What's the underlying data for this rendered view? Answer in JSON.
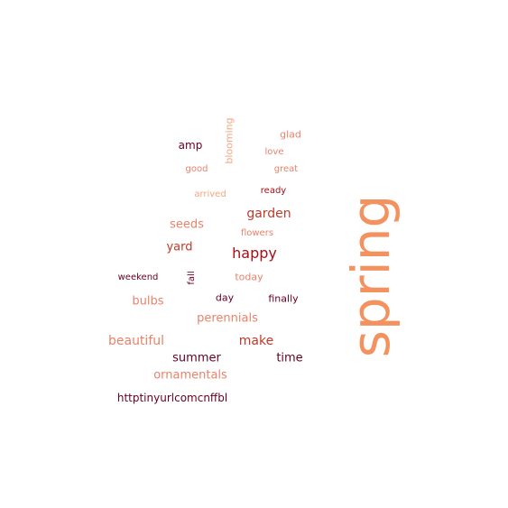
{
  "colors": {
    "light_orange": "#f4a582",
    "salmon": "#e8826a",
    "orange": "#f0905f",
    "red": "#d6604d",
    "dark_red": "#b2182b",
    "maroon": "#67001f",
    "brown": "#8b1a1a"
  },
  "words": [
    {
      "text": "spring",
      "color": "#f4925f"
    },
    {
      "text": "happy",
      "color": "#a50f15"
    },
    {
      "text": "garden",
      "color": "#c0392b"
    },
    {
      "text": "yard",
      "color": "#c0392b"
    },
    {
      "text": "seeds",
      "color": "#e8826a"
    },
    {
      "text": "beautiful",
      "color": "#e8826a"
    },
    {
      "text": "make",
      "color": "#c0392b"
    },
    {
      "text": "summer",
      "color": "#67001f"
    },
    {
      "text": "time",
      "color": "#67001f"
    },
    {
      "text": "perennials",
      "color": "#e8826a"
    },
    {
      "text": "bulbs",
      "color": "#e8826a"
    },
    {
      "text": "ornamentals",
      "color": "#e8826a"
    },
    {
      "text": "httptinyurlcomcnffbl",
      "color": "#67001f"
    },
    {
      "text": "amp",
      "color": "#67001f"
    },
    {
      "text": "blooming",
      "color": "#f4a582"
    },
    {
      "text": "glad",
      "color": "#e8826a"
    },
    {
      "text": "love",
      "color": "#e8826a"
    },
    {
      "text": "good",
      "color": "#e8826a"
    },
    {
      "text": "great",
      "color": "#e8826a"
    },
    {
      "text": "arrived",
      "color": "#f4a582"
    },
    {
      "text": "ready",
      "color": "#a50f15"
    },
    {
      "text": "flowers",
      "color": "#e8826a"
    },
    {
      "text": "weekend",
      "color": "#67001f"
    },
    {
      "text": "fall",
      "color": "#67001f"
    },
    {
      "text": "today",
      "color": "#e8826a"
    },
    {
      "text": "day",
      "color": "#67001f"
    },
    {
      "text": "finally",
      "color": "#67001f"
    }
  ]
}
